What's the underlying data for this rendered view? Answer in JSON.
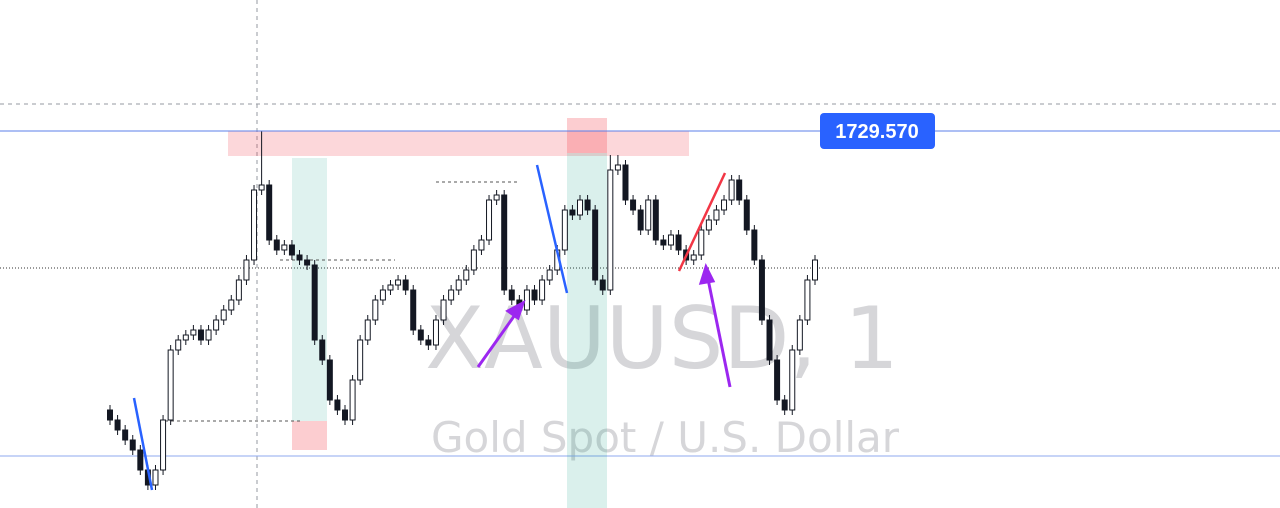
{
  "chart_data": {
    "type": "candlestick",
    "title": "XAUUSD, 1",
    "subtitle": "Gold Spot / U.S. Dollar",
    "ylim": [
      1722.03,
      1732.19
    ],
    "price_line": {
      "value": 1729.57,
      "label": "1729.570"
    },
    "color_up": "#ffffff",
    "color_down": "#131722",
    "open": [
      1723.99,
      1723.79,
      1723.59,
      1723.39,
      1723.19,
      1722.79,
      1722.49,
      1722.79,
      1723.79,
      1725.19,
      1725.39,
      1725.49,
      1725.59,
      1725.39,
      1725.59,
      1725.79,
      1725.99,
      1726.19,
      1726.59,
      1726.99,
      1728.39,
      1728.49,
      1727.39,
      1727.19,
      1727.29,
      1727.09,
      1726.99,
      1726.89,
      1725.39,
      1724.99,
      1724.19,
      1723.99,
      1723.79,
      1724.59,
      1725.39,
      1725.79,
      1726.19,
      1726.39,
      1726.49,
      1726.59,
      1726.39,
      1725.59,
      1725.39,
      1725.29,
      1725.79,
      1726.19,
      1726.39,
      1726.59,
      1726.79,
      1727.19,
      1727.39,
      1728.19,
      1728.29,
      1726.39,
      1726.19,
      1725.99,
      1726.39,
      1726.19,
      1726.59,
      1726.79,
      1727.19,
      1727.99,
      1727.89,
      1728.19,
      1727.99,
      1726.59,
      1726.39,
      1728.79,
      1728.89,
      1728.19,
      1727.99,
      1727.59,
      1728.19,
      1727.39,
      1727.29,
      1727.49,
      1727.19,
      1726.99,
      1727.09,
      1727.59,
      1727.79,
      1727.99,
      1728.19,
      1728.59,
      1728.19,
      1727.59,
      1726.99,
      1725.79,
      1724.99,
      1724.19,
      1723.99,
      1725.19,
      1725.79,
      1726.59
    ],
    "high": [
      1724.09,
      1723.89,
      1723.69,
      1723.49,
      1723.29,
      1722.89,
      1722.89,
      1723.89,
      1725.29,
      1725.49,
      1725.59,
      1725.69,
      1725.69,
      1725.69,
      1725.89,
      1726.09,
      1726.29,
      1726.69,
      1727.09,
      1728.49,
      1729.57,
      1728.59,
      1727.49,
      1727.39,
      1727.39,
      1727.19,
      1727.09,
      1726.99,
      1725.49,
      1725.09,
      1724.29,
      1724.09,
      1724.69,
      1725.49,
      1725.89,
      1726.29,
      1726.49,
      1726.59,
      1726.69,
      1726.69,
      1726.49,
      1725.69,
      1725.49,
      1725.89,
      1726.29,
      1726.49,
      1726.69,
      1726.89,
      1727.29,
      1727.49,
      1728.29,
      1728.39,
      1728.39,
      1726.49,
      1726.29,
      1726.49,
      1726.49,
      1726.69,
      1726.89,
      1727.29,
      1728.09,
      1728.09,
      1728.29,
      1728.29,
      1728.09,
      1726.69,
      1729.09,
      1729.09,
      1728.99,
      1728.29,
      1728.09,
      1728.29,
      1728.29,
      1727.49,
      1727.59,
      1727.59,
      1727.29,
      1727.19,
      1727.69,
      1727.89,
      1728.09,
      1728.29,
      1728.69,
      1728.69,
      1728.29,
      1727.69,
      1727.09,
      1725.89,
      1725.09,
      1724.29,
      1725.29,
      1725.89,
      1726.69,
      1727.09
    ],
    "low": [
      1723.69,
      1723.49,
      1723.29,
      1723.09,
      1722.69,
      1722.39,
      1722.39,
      1722.69,
      1723.69,
      1725.09,
      1725.29,
      1725.39,
      1725.29,
      1725.29,
      1725.49,
      1725.69,
      1725.89,
      1726.09,
      1726.49,
      1726.89,
      1728.29,
      1727.29,
      1727.09,
      1727.09,
      1726.99,
      1726.89,
      1726.79,
      1725.29,
      1724.89,
      1724.09,
      1723.89,
      1723.69,
      1723.69,
      1724.49,
      1725.29,
      1725.69,
      1726.09,
      1726.29,
      1726.39,
      1726.29,
      1725.49,
      1725.29,
      1725.19,
      1725.19,
      1725.69,
      1726.09,
      1726.29,
      1726.49,
      1726.69,
      1727.09,
      1727.29,
      1728.09,
      1726.29,
      1726.09,
      1725.89,
      1725.89,
      1726.09,
      1726.09,
      1726.49,
      1726.69,
      1727.09,
      1727.79,
      1727.79,
      1727.89,
      1726.49,
      1726.29,
      1726.29,
      1728.69,
      1728.09,
      1727.89,
      1727.49,
      1727.49,
      1727.29,
      1727.19,
      1727.19,
      1727.09,
      1726.89,
      1726.89,
      1726.99,
      1727.49,
      1727.69,
      1727.89,
      1728.09,
      1728.09,
      1727.49,
      1726.89,
      1725.69,
      1724.89,
      1724.09,
      1723.89,
      1723.89,
      1725.09,
      1725.69,
      1726.49
    ],
    "close": [
      1723.79,
      1723.59,
      1723.39,
      1723.19,
      1722.79,
      1722.49,
      1722.79,
      1723.79,
      1725.19,
      1725.39,
      1725.49,
      1725.59,
      1725.39,
      1725.59,
      1725.79,
      1725.99,
      1726.19,
      1726.59,
      1726.99,
      1728.39,
      1728.49,
      1727.39,
      1727.19,
      1727.29,
      1727.09,
      1726.99,
      1726.89,
      1725.39,
      1724.99,
      1724.19,
      1723.99,
      1723.79,
      1724.59,
      1725.39,
      1725.79,
      1726.19,
      1726.39,
      1726.49,
      1726.59,
      1726.39,
      1725.59,
      1725.39,
      1725.29,
      1725.79,
      1726.19,
      1726.39,
      1726.59,
      1726.79,
      1727.19,
      1727.39,
      1728.19,
      1728.29,
      1726.39,
      1726.19,
      1725.99,
      1726.39,
      1726.19,
      1726.59,
      1726.79,
      1727.19,
      1727.99,
      1727.89,
      1728.19,
      1727.99,
      1726.59,
      1726.39,
      1728.79,
      1728.89,
      1728.19,
      1727.99,
      1727.59,
      1728.19,
      1727.39,
      1727.29,
      1727.49,
      1727.19,
      1726.99,
      1727.09,
      1727.59,
      1727.79,
      1727.99,
      1728.19,
      1728.59,
      1728.19,
      1727.59,
      1726.99,
      1725.79,
      1724.99,
      1724.19,
      1723.99,
      1725.19,
      1725.79,
      1726.59,
      1726.99
    ]
  }
}
